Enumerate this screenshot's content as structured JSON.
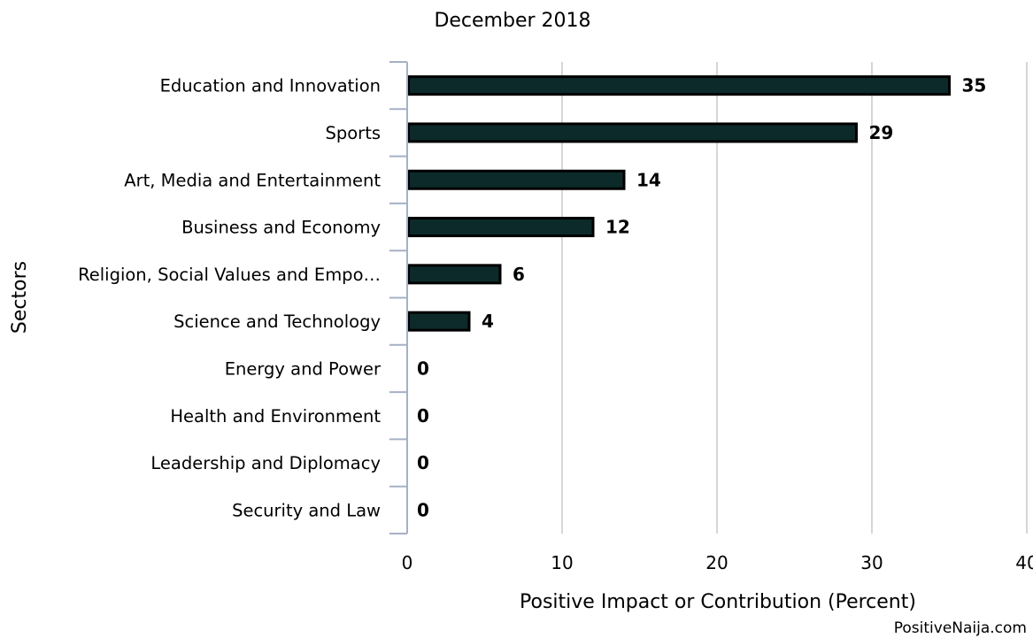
{
  "chart_data": {
    "type": "bar",
    "orientation": "horizontal",
    "title": "December 2018",
    "xlabel": "Positive Impact or Contribution (Percent)",
    "ylabel": "Sectors",
    "xlim": [
      0,
      40
    ],
    "xticks": [
      0,
      10,
      20,
      30,
      40
    ],
    "grid": true,
    "legend": "none",
    "categories": [
      "Education and Innovation",
      "Sports",
      "Art, Media and Entertainment",
      "Business and Economy",
      "Religion, Social Values and Empo…",
      "Science and Technology",
      "Energy and Power",
      "Health and Environment",
      "Leadership and Diplomacy",
      "Security and Law"
    ],
    "values": [
      35,
      29,
      14,
      12,
      6,
      4,
      0,
      0,
      0,
      0
    ],
    "bar_color": "#0c2a2a",
    "gridline_color": "#c8c8c8",
    "axis_color": "#a6b0c6"
  },
  "credit": "PositiveNaija.com"
}
